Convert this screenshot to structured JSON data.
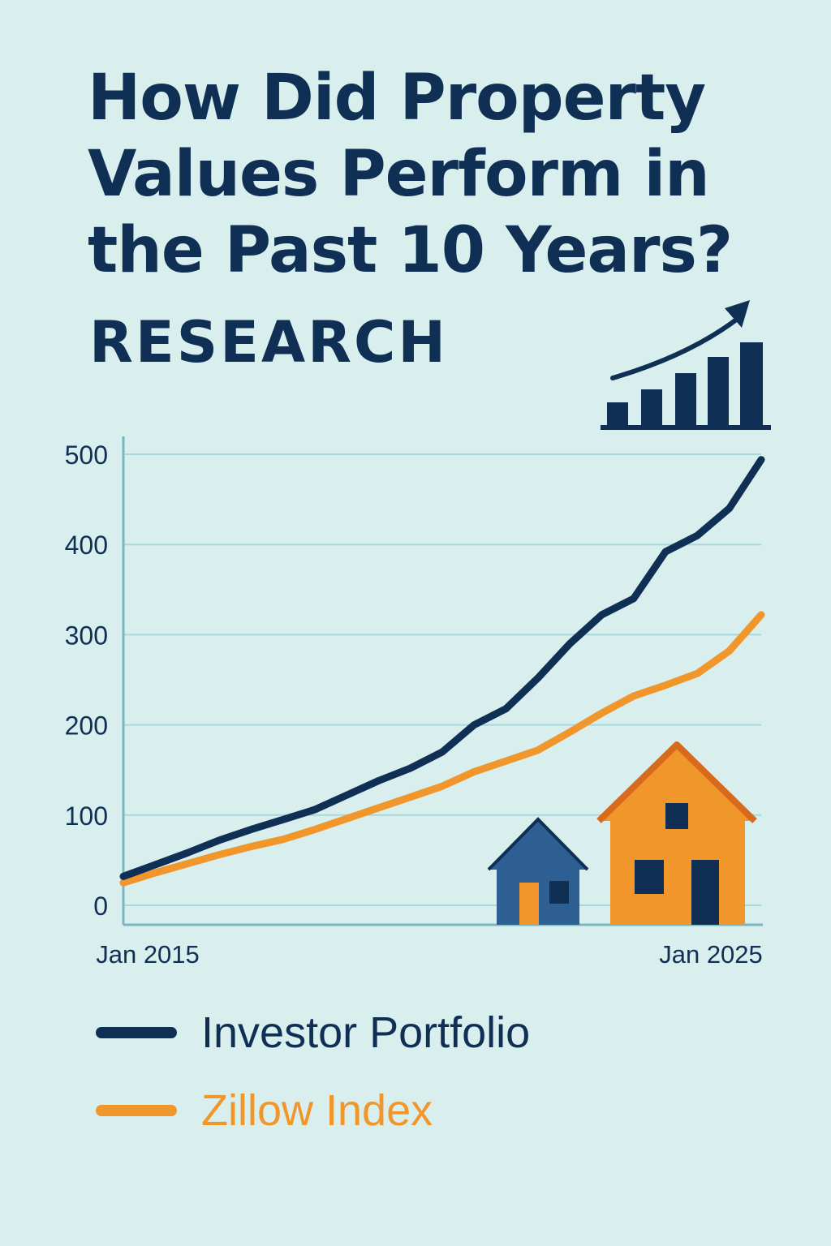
{
  "header": {
    "title_lines": [
      "How Did Property",
      "Values Perform in",
      "the Past 10 Years?"
    ],
    "kicker": "RESEARCH"
  },
  "colors": {
    "background": "#d8efee",
    "navy": "#0f2f55",
    "orange": "#f0962a",
    "grid": "#a9d8dc",
    "house_blue": "#2d5f93",
    "roof_orange": "#d86a1e"
  },
  "icons": [
    "growth-chart-icon",
    "small-house-icon",
    "large-house-icon"
  ],
  "chart_data": {
    "type": "line",
    "title": "How Did Property Values Perform in the Past 10 Years?",
    "xlabel": "",
    "ylabel": "",
    "x_tick_labels": [
      "Jan 2015",
      "Jan 2025"
    ],
    "y_ticks": [
      0,
      100,
      200,
      300,
      400,
      500
    ],
    "ylim": [
      0,
      500
    ],
    "xlim": [
      0,
      10
    ],
    "legend_position": "bottom",
    "x": [
      0,
      0.5,
      1,
      1.5,
      2,
      2.5,
      3,
      3.5,
      4,
      4.5,
      5,
      5.5,
      6,
      6.5,
      7,
      7.5,
      8,
      8.5,
      9,
      9.5,
      10
    ],
    "series": [
      {
        "name": "Investor Portfolio",
        "color": "#0f2f55",
        "values": [
          32,
          45,
          58,
          72,
          84,
          95,
          106,
          122,
          138,
          152,
          170,
          200,
          218,
          252,
          290,
          322,
          340,
          392,
          410,
          440,
          494
        ]
      },
      {
        "name": "Zillow Index",
        "color": "#f0962a",
        "values": [
          25,
          36,
          46,
          56,
          65,
          73,
          84,
          96,
          108,
          120,
          132,
          148,
          160,
          172,
          192,
          213,
          232,
          244,
          257,
          282,
          322
        ]
      }
    ]
  }
}
